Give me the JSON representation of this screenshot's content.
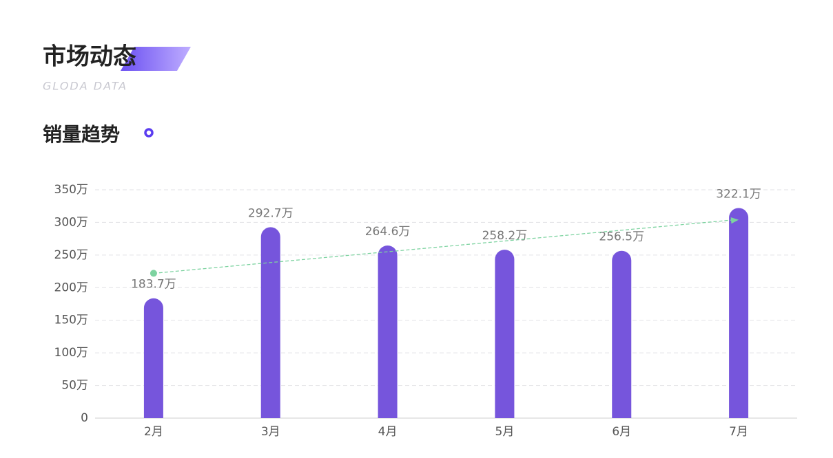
{
  "header": {
    "title": "市场动态",
    "subtitle": "GLODA DATA"
  },
  "chart_data": {
    "type": "bar",
    "title": "销量趋势",
    "categories": [
      "2月",
      "3月",
      "4月",
      "5月",
      "6月",
      "7月"
    ],
    "values": [
      183.7,
      292.7,
      264.6,
      258.2,
      256.5,
      322.1
    ],
    "value_labels": [
      "183.7万",
      "292.7万",
      "264.6万",
      "258.2万",
      "256.5万",
      "322.1万"
    ],
    "color": "#7655dc",
    "ylim": [
      0,
      350
    ],
    "yticks": [
      0,
      {
        "value": 50,
        "label": "50万"
      },
      {
        "value": 100,
        "label": "100万"
      },
      {
        "value": 150,
        "label": "150万"
      },
      {
        "value": 200,
        "label": "200万"
      },
      {
        "value": 250,
        "label": "250万"
      },
      {
        "value": 300,
        "label": "300万"
      },
      {
        "value": 350,
        "label": "350万"
      }
    ],
    "grid": true,
    "trendline": {
      "start": 222,
      "end": 304,
      "color": "#7dd3a0"
    }
  }
}
